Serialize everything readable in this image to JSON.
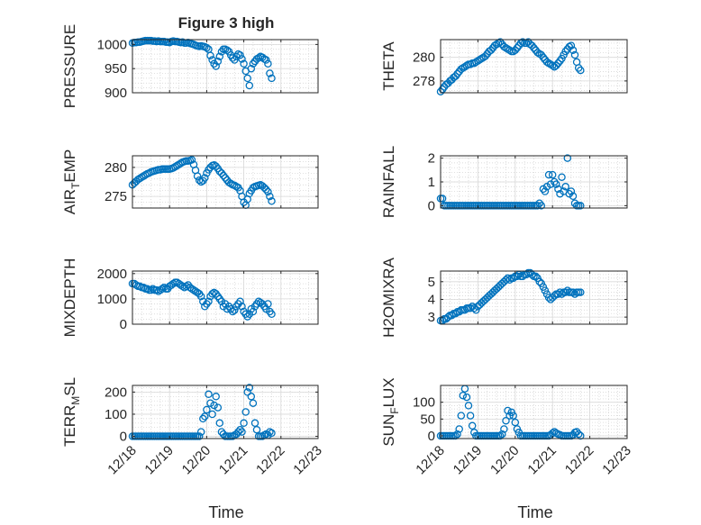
{
  "figure": {
    "title": "Figure 3 high",
    "xlabel": "Time",
    "x_tick_labels": [
      "12/18",
      "12/19",
      "12/20",
      "12/21",
      "12/22",
      "12/23"
    ],
    "marker_color": "#0072BD"
  },
  "chart_data": [
    {
      "type": "scatter",
      "ylabel": "PRESSURE",
      "ylim": [
        900,
        1010
      ],
      "yticks": [
        900,
        950,
        1000
      ],
      "grid": true,
      "x_range_days": [
        0,
        5
      ],
      "x": [
        0.0,
        0.05,
        0.1,
        0.15,
        0.2,
        0.25,
        0.3,
        0.35,
        0.4,
        0.45,
        0.5,
        0.55,
        0.6,
        0.65,
        0.7,
        0.75,
        0.8,
        0.85,
        0.9,
        0.95,
        1.0,
        1.05,
        1.1,
        1.15,
        1.2,
        1.25,
        1.3,
        1.35,
        1.4,
        1.45,
        1.5,
        1.55,
        1.6,
        1.65,
        1.7,
        1.75,
        1.8,
        1.85,
        1.9,
        1.95,
        2.0,
        2.05,
        2.1,
        2.15,
        2.2,
        2.25,
        2.3,
        2.35,
        2.4,
        2.45,
        2.5,
        2.55,
        2.6,
        2.65,
        2.7,
        2.75,
        2.8,
        2.85,
        2.9,
        2.95,
        3.0,
        3.05,
        3.1,
        3.15,
        3.2,
        3.25,
        3.3,
        3.35,
        3.4,
        3.45,
        3.5,
        3.55,
        3.6,
        3.65,
        3.7,
        3.75
      ],
      "y": [
        1003,
        1004,
        1004,
        1005,
        1005,
        1006,
        1007,
        1008,
        1008,
        1008,
        1008,
        1007,
        1007,
        1006,
        1007,
        1006,
        1006,
        1006,
        1005,
        1005,
        1004,
        1006,
        1007,
        1006,
        1006,
        1005,
        1004,
        1005,
        1003,
        1003,
        1004,
        1002,
        1001,
        1000,
        998,
        997,
        996,
        997,
        996,
        995,
        993,
        990,
        977,
        968,
        960,
        955,
        965,
        975,
        985,
        990,
        990,
        988,
        985,
        978,
        972,
        968,
        975,
        980,
        978,
        970,
        960,
        945,
        930,
        915,
        950,
        960,
        965,
        970,
        972,
        975,
        973,
        970,
        968,
        960,
        940,
        930
      ]
    },
    {
      "type": "scatter",
      "ylabel": "THETA",
      "ylim": [
        277,
        281.5
      ],
      "yticks": [
        278,
        280
      ],
      "grid": true,
      "x_range_days": [
        0,
        5
      ],
      "x": [
        0.0,
        0.05,
        0.1,
        0.15,
        0.2,
        0.25,
        0.3,
        0.35,
        0.4,
        0.45,
        0.5,
        0.55,
        0.6,
        0.65,
        0.7,
        0.75,
        0.8,
        0.85,
        0.9,
        0.95,
        1.0,
        1.05,
        1.1,
        1.15,
        1.2,
        1.25,
        1.3,
        1.35,
        1.4,
        1.45,
        1.5,
        1.55,
        1.6,
        1.65,
        1.7,
        1.75,
        1.8,
        1.85,
        1.9,
        1.95,
        2.0,
        2.05,
        2.1,
        2.15,
        2.2,
        2.25,
        2.3,
        2.35,
        2.4,
        2.45,
        2.5,
        2.55,
        2.6,
        2.65,
        2.7,
        2.75,
        2.8,
        2.85,
        2.9,
        2.95,
        3.0,
        3.05,
        3.1,
        3.15,
        3.2,
        3.25,
        3.3,
        3.35,
        3.4,
        3.45,
        3.5,
        3.55,
        3.6,
        3.65,
        3.7,
        3.75
      ],
      "y": [
        277.1,
        277.3,
        277.5,
        277.7,
        277.8,
        278.0,
        278.1,
        278.3,
        278.4,
        278.6,
        278.8,
        279.0,
        279.1,
        279.2,
        279.3,
        279.4,
        279.4,
        279.5,
        279.5,
        279.6,
        279.7,
        279.8,
        279.9,
        280.0,
        280.1,
        280.3,
        280.5,
        280.6,
        280.8,
        281.0,
        281.1,
        281.2,
        281.3,
        281.1,
        280.9,
        280.8,
        280.7,
        280.6,
        280.5,
        280.5,
        280.6,
        280.8,
        281.0,
        281.2,
        281.3,
        281.2,
        281.2,
        281.3,
        281.1,
        281.0,
        280.8,
        280.6,
        280.4,
        280.3,
        280.2,
        280.0,
        279.8,
        279.6,
        279.5,
        279.4,
        279.3,
        279.2,
        279.3,
        279.5,
        279.7,
        279.9,
        280.2,
        280.5,
        280.7,
        280.9,
        281.0,
        280.6,
        280.2,
        279.6,
        279.1,
        278.9
      ]
    },
    {
      "type": "scatter",
      "ylabel": "AIR_TEMP",
      "ylim": [
        273,
        282
      ],
      "yticks": [
        275,
        280
      ],
      "grid": true,
      "x_range_days": [
        0,
        5
      ],
      "x": [
        0.0,
        0.05,
        0.1,
        0.15,
        0.2,
        0.25,
        0.3,
        0.35,
        0.4,
        0.45,
        0.5,
        0.55,
        0.6,
        0.65,
        0.7,
        0.75,
        0.8,
        0.85,
        0.9,
        0.95,
        1.0,
        1.05,
        1.1,
        1.15,
        1.2,
        1.25,
        1.3,
        1.35,
        1.4,
        1.45,
        1.5,
        1.55,
        1.6,
        1.65,
        1.7,
        1.75,
        1.8,
        1.85,
        1.9,
        1.95,
        2.0,
        2.05,
        2.1,
        2.15,
        2.2,
        2.25,
        2.3,
        2.35,
        2.4,
        2.45,
        2.5,
        2.55,
        2.6,
        2.65,
        2.7,
        2.75,
        2.8,
        2.85,
        2.9,
        2.95,
        3.0,
        3.05,
        3.1,
        3.15,
        3.2,
        3.25,
        3.3,
        3.35,
        3.4,
        3.45,
        3.5,
        3.55,
        3.6,
        3.65,
        3.7,
        3.75
      ],
      "y": [
        277.0,
        277.3,
        277.6,
        277.9,
        278.1,
        278.3,
        278.5,
        278.7,
        278.9,
        279.0,
        279.2,
        279.3,
        279.4,
        279.5,
        279.6,
        279.6,
        279.7,
        279.7,
        279.7,
        279.7,
        279.7,
        279.8,
        279.9,
        280.1,
        280.3,
        280.5,
        280.7,
        280.9,
        281.0,
        281.1,
        281.1,
        281.2,
        281.3,
        280.5,
        279.5,
        278.5,
        277.8,
        277.5,
        277.7,
        278.2,
        279.0,
        279.6,
        280.0,
        280.3,
        280.4,
        280.2,
        279.8,
        279.3,
        279.0,
        278.6,
        278.2,
        277.8,
        277.4,
        277.2,
        277.0,
        276.9,
        276.7,
        276.5,
        276.0,
        275.0,
        274.0,
        273.5,
        274.5,
        275.5,
        276.0,
        276.5,
        276.7,
        276.8,
        276.9,
        277.0,
        276.8,
        276.5,
        276.2,
        275.8,
        275.0,
        274.2
      ]
    },
    {
      "type": "scatter",
      "ylabel": "RAINFALL",
      "ylim": [
        -0.1,
        2.1
      ],
      "yticks": [
        0,
        1,
        2
      ],
      "grid": true,
      "x_range_days": [
        0,
        5
      ],
      "x": [
        0.0,
        0.05,
        0.1,
        0.15,
        0.2,
        0.25,
        0.3,
        0.35,
        0.4,
        0.45,
        0.5,
        0.55,
        0.6,
        0.65,
        0.7,
        0.75,
        0.8,
        0.85,
        0.9,
        0.95,
        1.0,
        1.05,
        1.1,
        1.15,
        1.2,
        1.25,
        1.3,
        1.35,
        1.4,
        1.45,
        1.5,
        1.55,
        1.6,
        1.65,
        1.7,
        1.75,
        1.8,
        1.85,
        1.9,
        1.95,
        2.0,
        2.05,
        2.1,
        2.15,
        2.2,
        2.25,
        2.3,
        2.35,
        2.4,
        2.45,
        2.5,
        2.55,
        2.6,
        2.65,
        2.7,
        2.75,
        2.8,
        2.85,
        2.9,
        2.95,
        3.0,
        3.05,
        3.1,
        3.15,
        3.2,
        3.25,
        3.3,
        3.35,
        3.4,
        3.45,
        3.5,
        3.55,
        3.6,
        3.65,
        3.7,
        3.75
      ],
      "y": [
        0.3,
        0.3,
        0.0,
        0.0,
        0.0,
        0.0,
        0.0,
        0.0,
        0.0,
        0.0,
        0.0,
        0.0,
        0.0,
        0.0,
        0.0,
        0.0,
        0.0,
        0.0,
        0.0,
        0.0,
        0.0,
        0.0,
        0.0,
        0.0,
        0.0,
        0.0,
        0.0,
        0.0,
        0.0,
        0.0,
        0.0,
        0.0,
        0.0,
        0.0,
        0.0,
        0.0,
        0.0,
        0.0,
        0.0,
        0.0,
        0.0,
        0.0,
        0.0,
        0.0,
        0.0,
        0.0,
        0.0,
        0.0,
        0.0,
        0.0,
        0.0,
        0.0,
        0.0,
        0.1,
        0.0,
        0.7,
        0.6,
        0.8,
        1.3,
        0.9,
        1.3,
        1.0,
        0.9,
        0.7,
        0.5,
        1.2,
        0.6,
        0.8,
        2.0,
        0.5,
        0.6,
        0.4,
        0.1,
        0.0,
        0.0,
        0.0
      ]
    },
    {
      "type": "scatter",
      "ylabel": "MIXDEPTH",
      "ylim": [
        0,
        2100
      ],
      "yticks": [
        0,
        1000,
        2000
      ],
      "grid": true,
      "x_range_days": [
        0,
        5
      ],
      "x": [
        0.0,
        0.05,
        0.1,
        0.15,
        0.2,
        0.25,
        0.3,
        0.35,
        0.4,
        0.45,
        0.5,
        0.55,
        0.6,
        0.65,
        0.7,
        0.75,
        0.8,
        0.85,
        0.9,
        0.95,
        1.0,
        1.05,
        1.1,
        1.15,
        1.2,
        1.25,
        1.3,
        1.35,
        1.4,
        1.45,
        1.5,
        1.55,
        1.6,
        1.65,
        1.7,
        1.75,
        1.8,
        1.85,
        1.9,
        1.95,
        2.0,
        2.05,
        2.1,
        2.15,
        2.2,
        2.25,
        2.3,
        2.35,
        2.4,
        2.45,
        2.5,
        2.55,
        2.6,
        2.65,
        2.7,
        2.75,
        2.8,
        2.85,
        2.9,
        2.95,
        3.0,
        3.05,
        3.1,
        3.15,
        3.2,
        3.25,
        3.3,
        3.35,
        3.4,
        3.45,
        3.5,
        3.55,
        3.6,
        3.65,
        3.7,
        3.75
      ],
      "y": [
        1600,
        1600,
        1550,
        1500,
        1500,
        1450,
        1450,
        1400,
        1400,
        1350,
        1350,
        1400,
        1350,
        1350,
        1300,
        1350,
        1400,
        1450,
        1400,
        1400,
        1500,
        1550,
        1600,
        1650,
        1650,
        1600,
        1550,
        1500,
        1450,
        1500,
        1550,
        1450,
        1400,
        1350,
        1300,
        1250,
        1200,
        1100,
        900,
        700,
        800,
        900,
        1100,
        1200,
        1250,
        1200,
        1100,
        1000,
        900,
        700,
        800,
        600,
        700,
        600,
        500,
        550,
        700,
        800,
        900,
        700,
        500,
        400,
        300,
        400,
        600,
        500,
        700,
        800,
        900,
        850,
        800,
        700,
        600,
        800,
        500,
        400
      ]
    },
    {
      "type": "scatter",
      "ylabel": "H2OMIXRA",
      "ylim": [
        2.6,
        5.6
      ],
      "yticks": [
        3,
        4,
        5
      ],
      "grid": true,
      "x_range_days": [
        0,
        5
      ],
      "x": [
        0.0,
        0.05,
        0.1,
        0.15,
        0.2,
        0.25,
        0.3,
        0.35,
        0.4,
        0.45,
        0.5,
        0.55,
        0.6,
        0.65,
        0.7,
        0.75,
        0.8,
        0.85,
        0.9,
        0.95,
        1.0,
        1.05,
        1.1,
        1.15,
        1.2,
        1.25,
        1.3,
        1.35,
        1.4,
        1.45,
        1.5,
        1.55,
        1.6,
        1.65,
        1.7,
        1.75,
        1.8,
        1.85,
        1.9,
        1.95,
        2.0,
        2.05,
        2.1,
        2.15,
        2.2,
        2.25,
        2.3,
        2.35,
        2.4,
        2.45,
        2.5,
        2.55,
        2.6,
        2.65,
        2.7,
        2.75,
        2.8,
        2.85,
        2.9,
        2.95,
        3.0,
        3.05,
        3.1,
        3.15,
        3.2,
        3.25,
        3.3,
        3.35,
        3.4,
        3.45,
        3.5,
        3.55,
        3.6,
        3.65,
        3.7,
        3.75
      ],
      "y": [
        2.8,
        2.8,
        2.9,
        2.9,
        3.0,
        3.1,
        3.1,
        3.2,
        3.2,
        3.3,
        3.3,
        3.4,
        3.4,
        3.4,
        3.5,
        3.5,
        3.5,
        3.6,
        3.5,
        3.4,
        3.6,
        3.7,
        3.8,
        3.9,
        4.0,
        4.1,
        4.2,
        4.3,
        4.4,
        4.5,
        4.6,
        4.7,
        4.8,
        4.9,
        5.0,
        5.1,
        5.2,
        5.1,
        5.2,
        5.2,
        5.3,
        5.3,
        5.4,
        5.3,
        5.3,
        5.4,
        5.4,
        5.5,
        5.5,
        5.4,
        5.3,
        5.3,
        5.2,
        5.0,
        4.9,
        4.7,
        4.5,
        4.3,
        4.1,
        4.0,
        4.1,
        4.2,
        4.3,
        4.3,
        4.4,
        4.3,
        4.4,
        4.4,
        4.5,
        4.4,
        4.4,
        4.4,
        4.3,
        4.4,
        4.4,
        4.4
      ]
    },
    {
      "type": "scatter",
      "ylabel": "TERR_MSL",
      "ylim": [
        -10,
        230
      ],
      "yticks": [
        0,
        100,
        200
      ],
      "grid": true,
      "x_range_days": [
        0,
        5
      ],
      "x": [
        0.0,
        0.05,
        0.1,
        0.15,
        0.2,
        0.25,
        0.3,
        0.35,
        0.4,
        0.45,
        0.5,
        0.55,
        0.6,
        0.65,
        0.7,
        0.75,
        0.8,
        0.85,
        0.9,
        0.95,
        1.0,
        1.05,
        1.1,
        1.15,
        1.2,
        1.25,
        1.3,
        1.35,
        1.4,
        1.45,
        1.5,
        1.55,
        1.6,
        1.65,
        1.7,
        1.75,
        1.8,
        1.85,
        1.9,
        1.95,
        2.0,
        2.05,
        2.1,
        2.15,
        2.2,
        2.25,
        2.3,
        2.35,
        2.4,
        2.45,
        2.5,
        2.55,
        2.6,
        2.65,
        2.7,
        2.75,
        2.8,
        2.85,
        2.9,
        2.95,
        3.0,
        3.05,
        3.1,
        3.15,
        3.2,
        3.25,
        3.3,
        3.35,
        3.4,
        3.45,
        3.5,
        3.55,
        3.6,
        3.65,
        3.7,
        3.75
      ],
      "y": [
        0,
        0,
        0,
        0,
        0,
        0,
        0,
        0,
        0,
        0,
        0,
        0,
        0,
        0,
        0,
        0,
        0,
        0,
        0,
        0,
        0,
        0,
        0,
        0,
        0,
        0,
        0,
        0,
        0,
        0,
        0,
        0,
        0,
        0,
        0,
        0,
        0,
        20,
        80,
        90,
        120,
        190,
        150,
        100,
        140,
        180,
        130,
        60,
        20,
        10,
        0,
        0,
        0,
        0,
        0,
        5,
        10,
        20,
        30,
        20,
        60,
        110,
        200,
        220,
        180,
        150,
        60,
        30,
        0,
        0,
        0,
        5,
        10,
        5,
        20,
        15
      ]
    },
    {
      "type": "scatter",
      "ylabel": "SUN_FLUX",
      "ylim": [
        -8,
        150
      ],
      "yticks": [
        0,
        50,
        100
      ],
      "grid": true,
      "x_range_days": [
        0,
        5
      ],
      "x": [
        0.0,
        0.05,
        0.1,
        0.15,
        0.2,
        0.25,
        0.3,
        0.35,
        0.4,
        0.45,
        0.5,
        0.55,
        0.6,
        0.65,
        0.7,
        0.75,
        0.8,
        0.85,
        0.9,
        0.95,
        1.0,
        1.05,
        1.1,
        1.15,
        1.2,
        1.25,
        1.3,
        1.35,
        1.4,
        1.45,
        1.5,
        1.55,
        1.6,
        1.65,
        1.7,
        1.75,
        1.8,
        1.85,
        1.9,
        1.95,
        2.0,
        2.05,
        2.1,
        2.15,
        2.2,
        2.25,
        2.3,
        2.35,
        2.4,
        2.45,
        2.5,
        2.55,
        2.6,
        2.65,
        2.7,
        2.75,
        2.8,
        2.85,
        2.9,
        2.95,
        3.0,
        3.05,
        3.1,
        3.15,
        3.2,
        3.25,
        3.3,
        3.35,
        3.4,
        3.45,
        3.5,
        3.55,
        3.6,
        3.65,
        3.7,
        3.75
      ],
      "y": [
        0,
        0,
        0,
        0,
        0,
        0,
        0,
        0,
        0,
        5,
        20,
        60,
        120,
        140,
        115,
        90,
        60,
        30,
        10,
        0,
        0,
        0,
        0,
        0,
        0,
        0,
        0,
        0,
        0,
        0,
        0,
        0,
        0,
        5,
        20,
        45,
        75,
        60,
        70,
        60,
        40,
        20,
        10,
        0,
        0,
        0,
        0,
        0,
        0,
        0,
        0,
        0,
        0,
        0,
        0,
        0,
        0,
        0,
        0,
        3,
        8,
        12,
        8,
        5,
        3,
        0,
        0,
        0,
        0,
        0,
        0,
        3,
        10,
        12,
        5,
        0
      ]
    }
  ]
}
